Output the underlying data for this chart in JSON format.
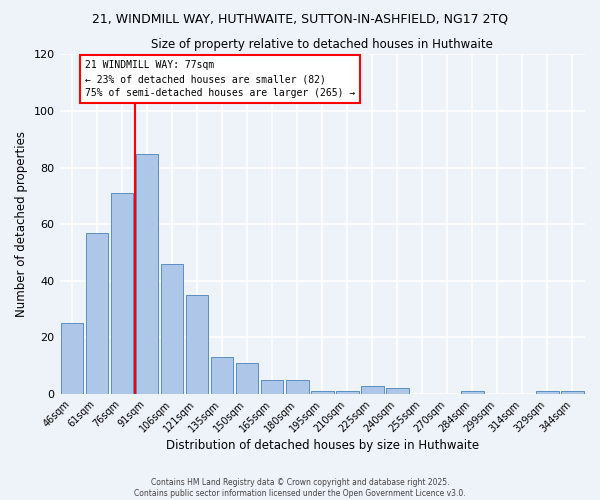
{
  "title1": "21, WINDMILL WAY, HUTHWAITE, SUTTON-IN-ASHFIELD, NG17 2TQ",
  "title2": "Size of property relative to detached houses in Huthwaite",
  "xlabel": "Distribution of detached houses by size in Huthwaite",
  "ylabel": "Number of detached properties",
  "categories": [
    "46sqm",
    "61sqm",
    "76sqm",
    "91sqm",
    "106sqm",
    "121sqm",
    "135sqm",
    "150sqm",
    "165sqm",
    "180sqm",
    "195sqm",
    "210sqm",
    "225sqm",
    "240sqm",
    "255sqm",
    "270sqm",
    "284sqm",
    "299sqm",
    "314sqm",
    "329sqm",
    "344sqm"
  ],
  "values": [
    25,
    57,
    71,
    85,
    46,
    35,
    13,
    11,
    5,
    5,
    1,
    1,
    3,
    2,
    0,
    0,
    1,
    0,
    0,
    1,
    1
  ],
  "bar_color": "#aec6e8",
  "bar_edge_color": "#5a8fc2",
  "red_line_index": 2.5,
  "ylim": [
    0,
    120
  ],
  "yticks": [
    0,
    20,
    40,
    60,
    80,
    100,
    120
  ],
  "annotation_title": "21 WINDMILL WAY: 77sqm",
  "annotation_line1": "← 23% of detached houses are smaller (82)",
  "annotation_line2": "75% of semi-detached houses are larger (265) →",
  "footnote1": "Contains HM Land Registry data © Crown copyright and database right 2025.",
  "footnote2": "Contains public sector information licensed under the Open Government Licence v3.0.",
  "background_color": "#eef2f9",
  "grid_color": "#ffffff"
}
